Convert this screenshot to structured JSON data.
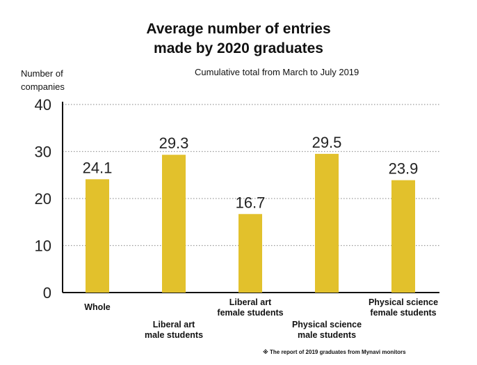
{
  "chart_data": {
    "type": "bar",
    "title_lines": [
      "Average number of entries",
      "made by 2020 graduates"
    ],
    "subtitle": "Cumulative total from March to July 2019",
    "ylabel_lines": [
      "Number of",
      "companies"
    ],
    "ylim": [
      0,
      40
    ],
    "yticks": [
      0,
      10,
      20,
      30,
      40
    ],
    "grid": "dotted-horizontal",
    "bar_color": "#e2c12c",
    "categories": [
      {
        "label": [
          "Whole"
        ],
        "value": 24.1,
        "value_label": "24.1"
      },
      {
        "label": [
          "Liberal art",
          "male students"
        ],
        "value": 29.3,
        "value_label": "29.3"
      },
      {
        "label": [
          "Liberal art",
          "female students"
        ],
        "value": 16.7,
        "value_label": "16.7"
      },
      {
        "label": [
          "Physical science",
          "male students"
        ],
        "value": 29.5,
        "value_label": "29.5"
      },
      {
        "label": [
          "Physical science",
          "female students"
        ],
        "value": 23.9,
        "value_label": "23.9"
      }
    ],
    "source": "※ The report of 2019 graduates from Mynavi monitors"
  }
}
